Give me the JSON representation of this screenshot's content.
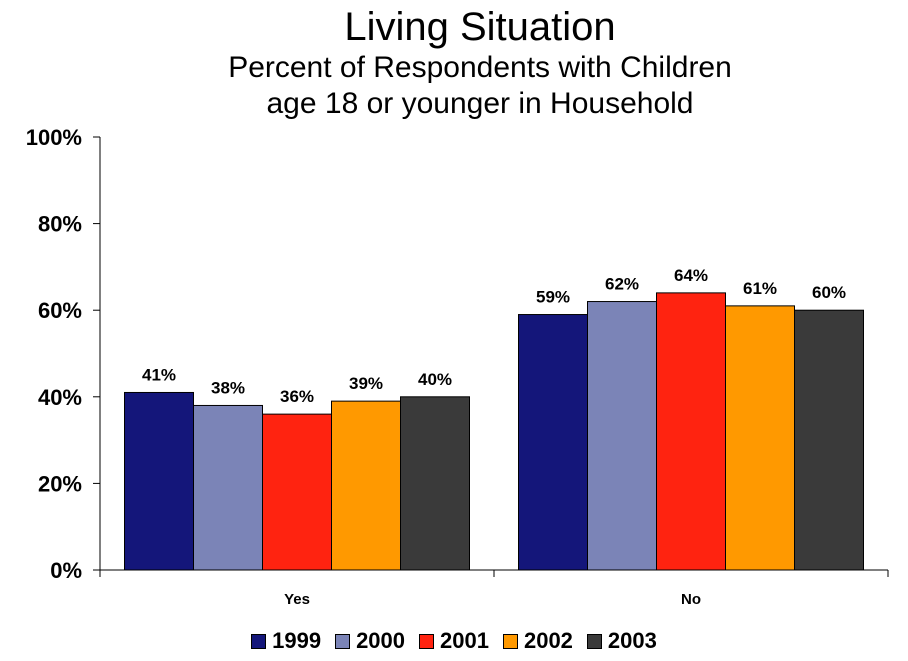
{
  "chart_data": {
    "type": "bar",
    "title": "Living Situation",
    "subtitle_lines": [
      "Percent of Respondents with Children",
      "age 18 or younger in Household"
    ],
    "categories": [
      "Yes",
      "No"
    ],
    "series": [
      {
        "name": "1999",
        "color": "#14167A",
        "values": [
          41,
          59
        ],
        "labels": [
          "41%",
          "59%"
        ]
      },
      {
        "name": "2000",
        "color": "#7B84B7",
        "values": [
          38,
          62
        ],
        "labels": [
          "38%",
          "62%"
        ]
      },
      {
        "name": "2001",
        "color": "#FF2310",
        "values": [
          36,
          64
        ],
        "labels": [
          "36%",
          "64%"
        ]
      },
      {
        "name": "2002",
        "color": "#FF9900",
        "values": [
          39,
          61
        ],
        "labels": [
          "39%",
          "61%"
        ]
      },
      {
        "name": "2003",
        "color": "#3A3A3A",
        "values": [
          40,
          60
        ],
        "labels": [
          "40%",
          "60%"
        ]
      }
    ],
    "ylim": [
      0,
      100
    ],
    "yticks": [
      0,
      20,
      40,
      60,
      80,
      100
    ],
    "ytick_labels": [
      "0%",
      "20%",
      "40%",
      "60%",
      "80%",
      "100%"
    ],
    "xlabel": "",
    "ylabel": "",
    "grid": false,
    "legend_position": "bottom"
  }
}
